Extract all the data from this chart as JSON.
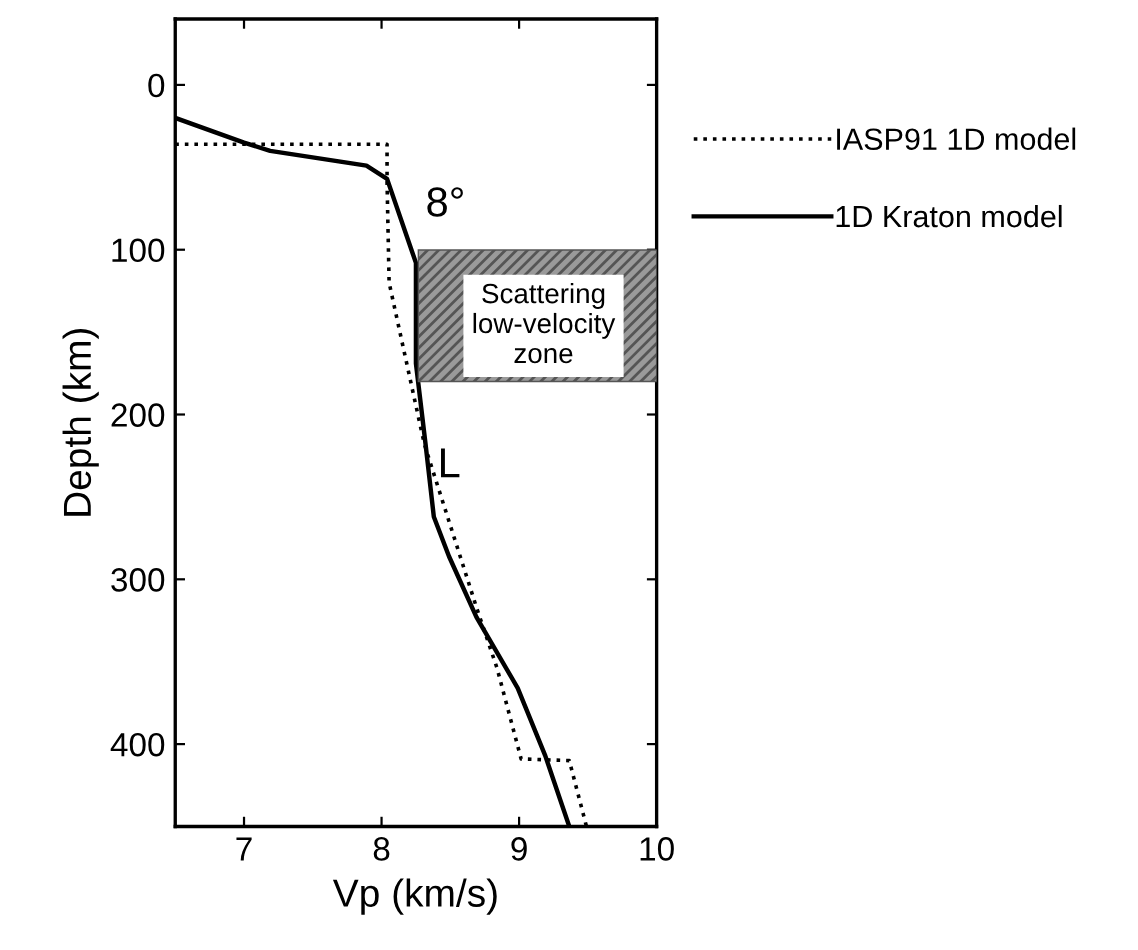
{
  "chart_data": {
    "type": "line",
    "xlabel": "Vp (km/s)",
    "ylabel": "Depth (km)",
    "xlim": [
      6.5,
      10
    ],
    "xticks": [
      7,
      8,
      9,
      10
    ],
    "ylim": [
      450,
      -40
    ],
    "yticks": [
      0,
      100,
      200,
      300,
      400
    ],
    "grid": false,
    "legend": "right",
    "marker": "none",
    "series": [
      {
        "name": "IASP91 1D model",
        "color": "#000000",
        "line_style": "dotted",
        "x": [
          6.5,
          8.04,
          8.04,
          8.055,
          8.29,
          8.315,
          8.69,
          8.84,
          9.015,
          9.365,
          9.49
        ],
        "values": [
          36,
          36,
          59,
          120,
          210,
          219,
          317,
          354,
          409,
          410,
          450
        ]
      },
      {
        "name": "1D Kraton model",
        "color": "#000000",
        "line_style": "solid",
        "x": [
          6.5,
          7.0,
          7.19,
          7.89,
          8.04,
          8.25,
          8.25,
          8.32,
          8.38,
          8.49,
          8.69,
          8.99,
          9.19,
          9.365
        ],
        "values": [
          20,
          35,
          40,
          49,
          57,
          108,
          169,
          218,
          262,
          286,
          323,
          366,
          407,
          450
        ]
      }
    ],
    "annotations": [
      "8°",
      "L",
      "Scattering\nlow-velocity\nzone"
    ]
  }
}
